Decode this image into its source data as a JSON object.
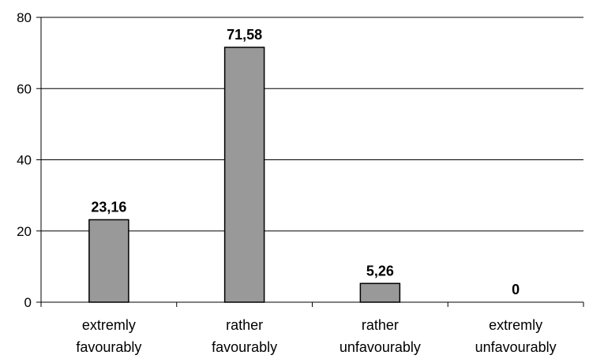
{
  "chart_data": {
    "type": "bar",
    "categories": [
      [
        "extremly",
        "favourably"
      ],
      [
        "rather",
        "favourably"
      ],
      [
        "rather",
        "unfavourably"
      ],
      [
        "extremly",
        "unfavourably"
      ]
    ],
    "values": [
      23.16,
      71.58,
      5.26,
      0
    ],
    "data_labels": [
      "23,16",
      "71,58",
      "5,26",
      "0"
    ],
    "y_ticks": [
      0,
      20,
      40,
      60,
      80
    ],
    "ylim": [
      0,
      80
    ],
    "title": "",
    "xlabel": "",
    "ylabel": "",
    "grid": "horizontal",
    "legend": "none"
  },
  "colors": {
    "bar_fill": "#999999",
    "bar_stroke": "#000000",
    "grid": "#000000",
    "axis": "#000000"
  }
}
